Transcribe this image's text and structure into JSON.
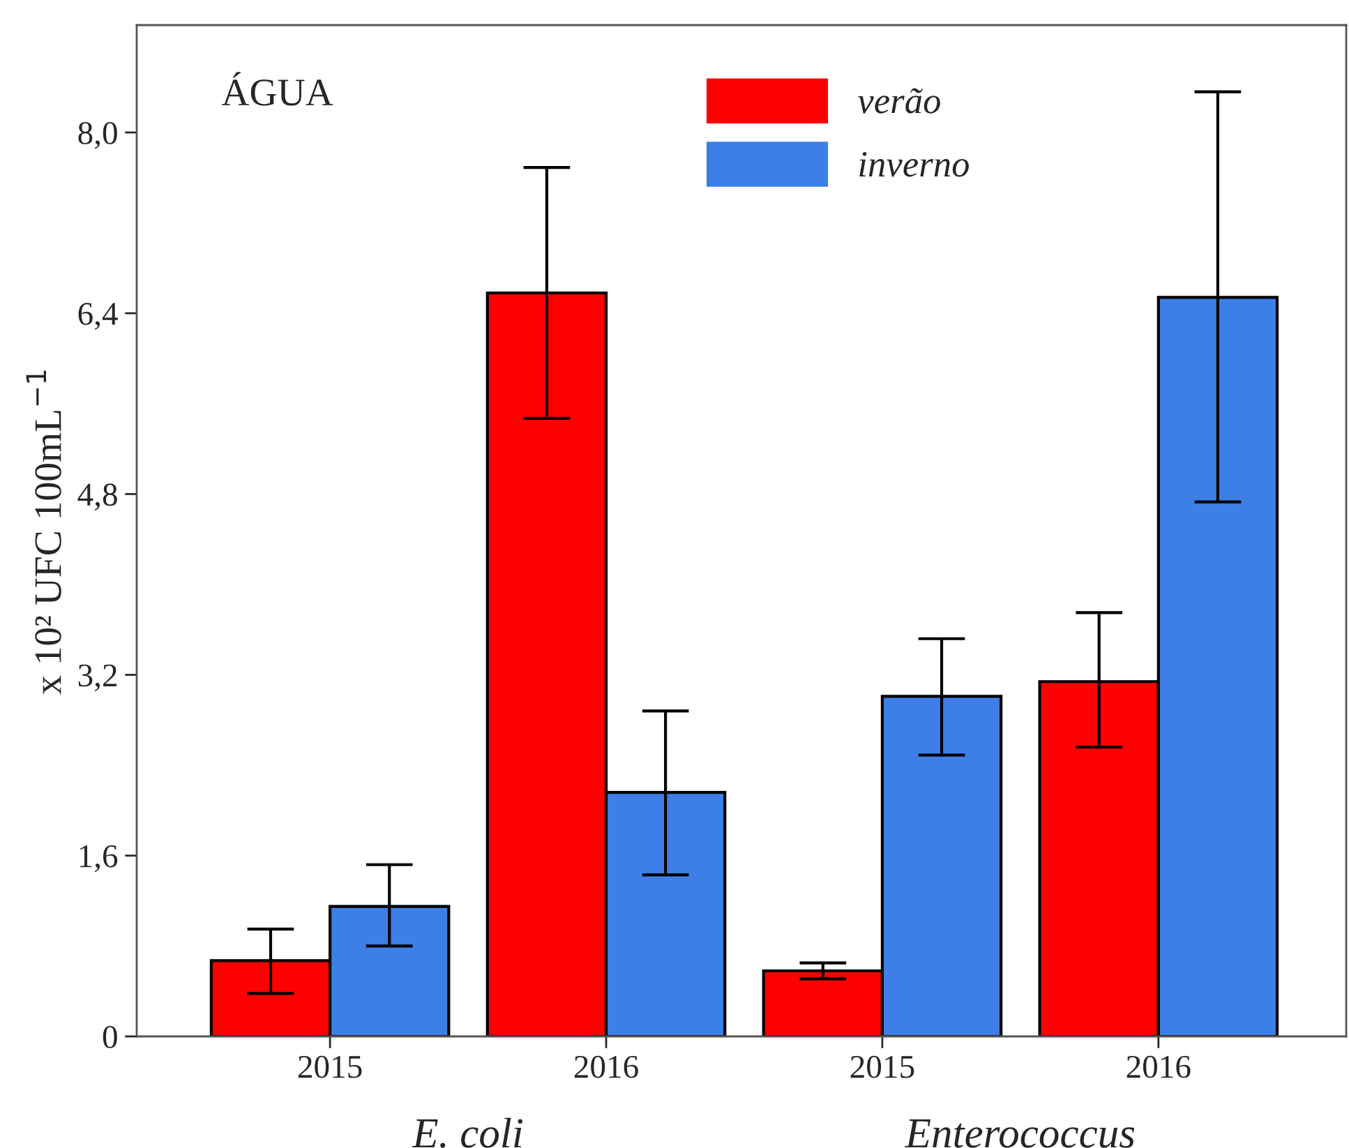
{
  "chart_data": {
    "type": "bar",
    "ylabel": "x 10² UFC 100mL$^{−1}$",
    "categories": [
      "2015",
      "2016",
      "2015",
      "2016"
    ],
    "series": [
      {
        "name": "verão",
        "color": "#ff0000",
        "values": [
          0.67,
          6.58,
          0.58,
          3.14
        ],
        "errors": [
          [
            0.38,
            0.95
          ],
          [
            5.47,
            7.69
          ],
          [
            0.51,
            0.65
          ],
          [
            2.56,
            3.75
          ]
        ]
      },
      {
        "name": "inverno",
        "color": "#3d7fe6",
        "values": [
          1.15,
          2.16,
          3.01,
          6.54
        ],
        "errors": [
          [
            0.8,
            1.52
          ],
          [
            1.43,
            2.88
          ],
          [
            2.49,
            3.52
          ],
          [
            4.73,
            8.36
          ]
        ]
      }
    ],
    "ylim": [
      0,
      8.95
    ],
    "yticks": [
      {
        "value": 0,
        "label": "0"
      },
      {
        "value": 1.6,
        "label": "1,6"
      },
      {
        "value": 3.2,
        "label": "3,2"
      },
      {
        "value": 4.8,
        "label": "4,8"
      },
      {
        "value": 6.4,
        "label": "6,4"
      },
      {
        "value": 8.0,
        "label": "8,0"
      }
    ],
    "annotations": [
      "ÁGUA",
      "E. coli",
      "Enterococcus"
    ],
    "legend": "top",
    "grid": false
  }
}
